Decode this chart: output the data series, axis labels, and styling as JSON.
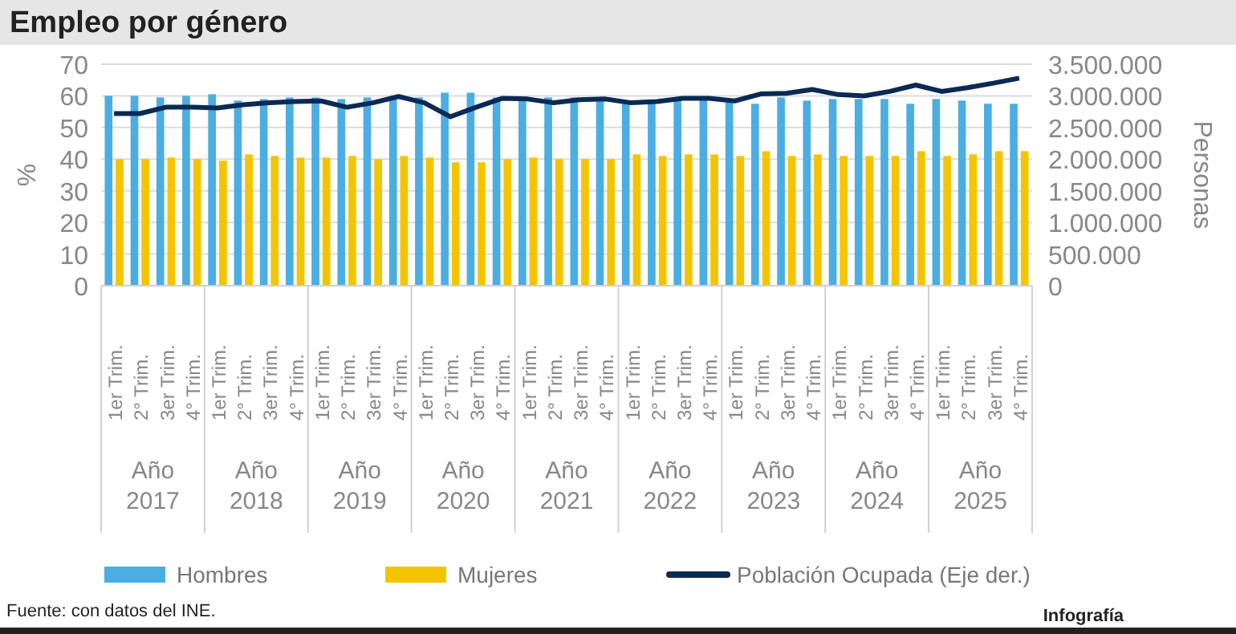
{
  "chart_data": {
    "type": "bar",
    "title": "Empleo por género",
    "ylabel": "%",
    "y2label": "Personas",
    "categories": [
      "1er Trim.",
      "2° Trim.",
      "3er Trim.",
      "4° Trim.",
      "1er Trim.",
      "2° Trim.",
      "3er Trim.",
      "4° Trim.",
      "1er Trim.",
      "2° Trim.",
      "3er Trim.",
      "4° Trim.",
      "1er Trim.",
      "2° Trim.",
      "3er Trim.",
      "4° Trim.",
      "1er Trim.",
      "2° Trim.",
      "3er Trim.",
      "4° Trim.",
      "1er Trim.",
      "2° Trim.",
      "3er Trim.",
      "4° Trim.",
      "1er Trim.",
      "2° Trim.",
      "3er Trim.",
      "4° Trim.",
      "1er Trim.",
      "2° Trim.",
      "3er Trim.",
      "4° Trim.",
      "1er Trim.",
      "2° Trim.",
      "3er Trim.",
      "4° Trim."
    ],
    "series": [
      {
        "name": "Hombres",
        "color": "#4aaee3",
        "values": [
          60,
          60,
          59.5,
          60,
          60.5,
          58.5,
          59,
          59.5,
          59.5,
          59,
          59.5,
          59.5,
          59.5,
          61,
          61,
          59.5,
          59.5,
          59.5,
          59.5,
          59.5,
          58.5,
          58.5,
          59,
          59,
          59,
          57.5,
          59.5,
          58.5,
          59,
          59,
          59,
          57.5,
          59,
          58.5,
          57.5,
          57.5
        ]
      },
      {
        "name": "Mujeres",
        "color": "#f5c400",
        "values": [
          40,
          40,
          40.5,
          40,
          39.5,
          41.5,
          41,
          40.5,
          40.5,
          41,
          40,
          41,
          40.5,
          39,
          39,
          40,
          40.5,
          40,
          40,
          40,
          41.5,
          41,
          41.5,
          41.5,
          41,
          42.5,
          41,
          41.5,
          41,
          41,
          41,
          42.5,
          41,
          41.5,
          42.5,
          42.5
        ]
      },
      {
        "name": "Población Ocupada (Eje der.)",
        "type": "line",
        "axis": "y2",
        "color": "#0a2a55",
        "values": [
          2720000,
          2720000,
          2820000,
          2820000,
          2810000,
          2860000,
          2890000,
          2910000,
          2920000,
          2820000,
          2890000,
          2990000,
          2890000,
          2670000,
          2820000,
          2960000,
          2950000,
          2890000,
          2940000,
          2950000,
          2890000,
          2910000,
          2960000,
          2960000,
          2920000,
          3030000,
          3040000,
          3100000,
          3020000,
          3000000,
          3070000,
          3170000,
          3070000,
          3130000,
          3200000,
          3280000
        ]
      }
    ],
    "ylim": [
      0,
      70
    ],
    "yticks": [
      0,
      10,
      20,
      30,
      40,
      50,
      60,
      70
    ],
    "y2lim": [
      0,
      3500000
    ],
    "y2ticks": [
      {
        "value": 0,
        "label": "0"
      },
      {
        "value": 500000,
        "label": "500.000"
      },
      {
        "value": 1000000,
        "label": "1.000.000"
      },
      {
        "value": 1500000,
        "label": "1.500.000"
      },
      {
        "value": 2000000,
        "label": "2.000.000"
      },
      {
        "value": 2500000,
        "label": "2.500.000"
      },
      {
        "value": 3000000,
        "label": "3.000.000"
      },
      {
        "value": 3500000,
        "label": "3.500.000"
      }
    ],
    "grid": "y",
    "legend": "bottom",
    "marker": "none",
    "annotations": [
      "Año 2017",
      "Año 2018",
      "Año 2019",
      "Año 2020",
      "Año 2021",
      "Año 2022",
      "Año 2023",
      "Año 2024",
      "Año 2025",
      "Fuente: con datos del INE.",
      "Infografía"
    ]
  }
}
